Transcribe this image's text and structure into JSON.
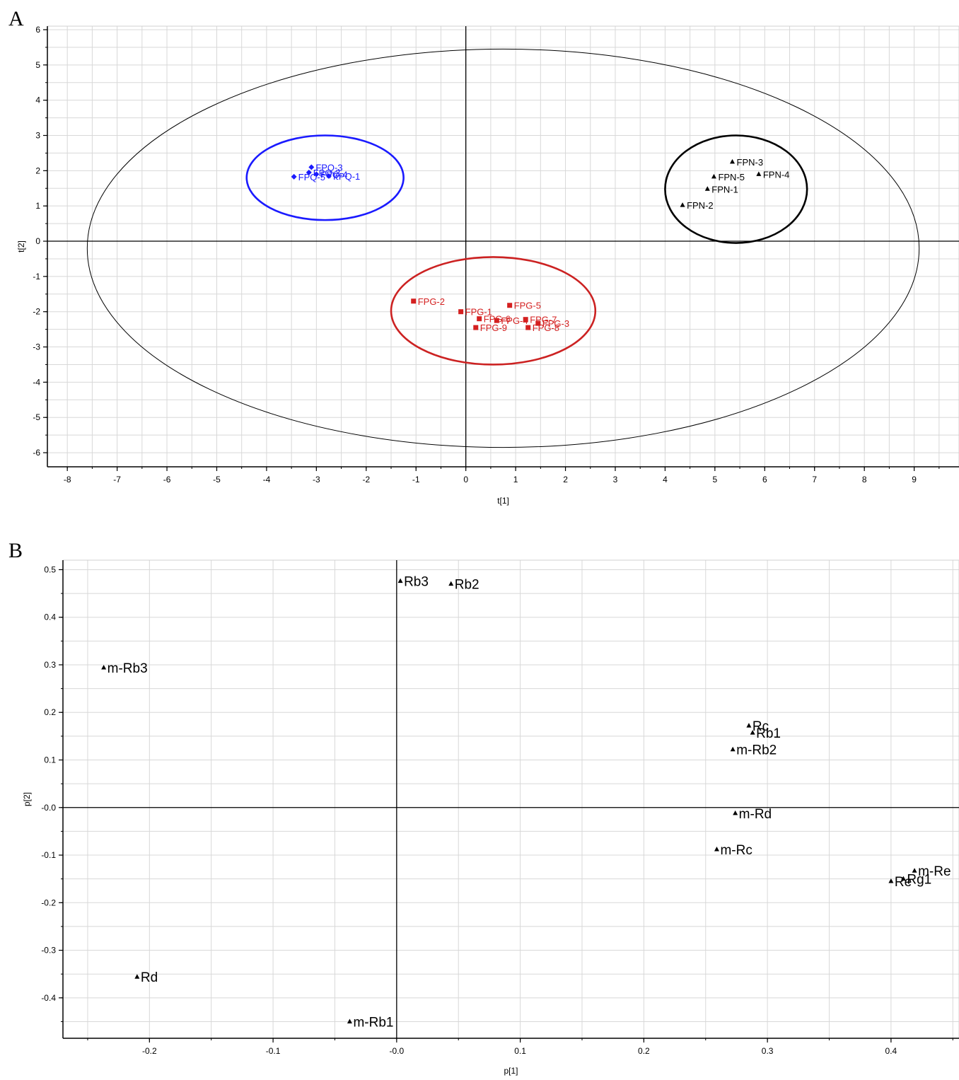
{
  "chart_data": [
    {
      "panel_label": "A",
      "type": "scatter",
      "xlabel": "t[1]",
      "ylabel": "t[2]",
      "xlim": [
        -8.4,
        9.9
      ],
      "ylim": [
        -6.4,
        6.1
      ],
      "xticks": [
        -8,
        -7,
        -6,
        -5,
        -4,
        -3,
        -2,
        -1,
        0,
        1,
        2,
        3,
        4,
        5,
        6,
        7,
        8,
        9
      ],
      "yticks": [
        6,
        5,
        4,
        3,
        2,
        1,
        0,
        -1,
        -2,
        -3,
        -4,
        -5,
        -6
      ],
      "grid": true,
      "reference_lines": {
        "x": 0,
        "y": 0
      },
      "hotelling_ellipse": {
        "x_range": [
          -7.6,
          9.1
        ],
        "y_range": [
          -5.85,
          5.45
        ],
        "color": "#000000"
      },
      "series": [
        {
          "color": "#1a1aff",
          "marker": "diamond",
          "points": [
            {
              "label": "FPQ-3",
              "x": -3.1,
              "y": 2.1
            },
            {
              "label": "FPQ-2",
              "x": -3.15,
              "y": 1.95
            },
            {
              "label": "FPQ-4",
              "x": -3.0,
              "y": 1.9
            },
            {
              "label": "FPQ-5",
              "x": -3.45,
              "y": 1.83
            },
            {
              "label": "FPQ-1",
              "x": -2.75,
              "y": 1.85
            }
          ],
          "group_circle": {
            "x_range": [
              -4.4,
              -1.25
            ],
            "y_range": [
              0.6,
              3.0
            ],
            "color": "#1a1aff"
          }
        },
        {
          "color": "#000000",
          "marker": "triangle",
          "points": [
            {
              "label": "FPN-3",
              "x": 5.35,
              "y": 2.25
            },
            {
              "label": "FPN-5",
              "x": 4.98,
              "y": 1.83
            },
            {
              "label": "FPN-4",
              "x": 5.88,
              "y": 1.9
            },
            {
              "label": "FPN-1",
              "x": 4.85,
              "y": 1.48
            },
            {
              "label": "FPN-2",
              "x": 4.35,
              "y": 1.02
            }
          ],
          "group_circle": {
            "x_range": [
              4.0,
              6.85
            ],
            "y_range": [
              -0.05,
              3.0
            ],
            "color": "#000000"
          }
        },
        {
          "color": "#d42020",
          "marker": "square",
          "points": [
            {
              "label": "FPG-2",
              "x": -1.05,
              "y": -1.7
            },
            {
              "label": "FPG-1",
              "x": -0.1,
              "y": -2.0
            },
            {
              "label": "FPG-5",
              "x": 0.88,
              "y": -1.82
            },
            {
              "label": "FPG-6",
              "x": 0.27,
              "y": -2.2
            },
            {
              "label": "FPG-4",
              "x": 0.62,
              "y": -2.25
            },
            {
              "label": "FPG-7",
              "x": 1.2,
              "y": -2.22
            },
            {
              "label": "FPG-3",
              "x": 1.45,
              "y": -2.33
            },
            {
              "label": "FPG-9",
              "x": 0.2,
              "y": -2.45
            },
            {
              "label": "FPG-8",
              "x": 1.25,
              "y": -2.45
            }
          ],
          "group_circle": {
            "x_range": [
              -1.5,
              2.6
            ],
            "y_range": [
              -3.5,
              -0.45
            ],
            "color": "#cc2222"
          }
        }
      ]
    },
    {
      "panel_label": "B",
      "type": "scatter",
      "xlabel": "p[1]",
      "ylabel": "p[2]",
      "xlim": [
        -0.27,
        0.455
      ],
      "ylim": [
        -0.485,
        0.52
      ],
      "xticks": [
        "-0.2",
        "-0.1",
        "-0.0",
        "0.1",
        "0.2",
        "0.3",
        "0.4"
      ],
      "yticks": [
        "0.5",
        "0.4",
        "0.3",
        "0.2",
        "0.1",
        "-0.0",
        "-0.1",
        "-0.2",
        "-0.3",
        "-0.4"
      ],
      "grid": true,
      "reference_lines": {
        "x": 0,
        "y": 0
      },
      "series": [
        {
          "color": "#000000",
          "marker": "triangle",
          "points": [
            {
              "label": "Rb3",
              "x": 0.003,
              "y": 0.476
            },
            {
              "label": "Rb2",
              "x": 0.044,
              "y": 0.47
            },
            {
              "label": "m-Rb3",
              "x": -0.237,
              "y": 0.294
            },
            {
              "label": "Rc",
              "x": 0.285,
              "y": 0.172
            },
            {
              "label": "Rb1",
              "x": 0.288,
              "y": 0.157
            },
            {
              "label": "m-Rb2",
              "x": 0.272,
              "y": 0.122
            },
            {
              "label": "m-Rd",
              "x": 0.274,
              "y": -0.012
            },
            {
              "label": "m-Rc",
              "x": 0.259,
              "y": -0.088
            },
            {
              "label": "Re",
              "x": 0.4,
              "y": -0.155
            },
            {
              "label": "Rg1",
              "x": 0.41,
              "y": -0.15
            },
            {
              "label": "m-Re",
              "x": 0.419,
              "y": -0.133
            },
            {
              "label": "Rd",
              "x": -0.21,
              "y": -0.356
            },
            {
              "label": "m-Rb1",
              "x": -0.038,
              "y": -0.45
            }
          ]
        }
      ]
    }
  ]
}
